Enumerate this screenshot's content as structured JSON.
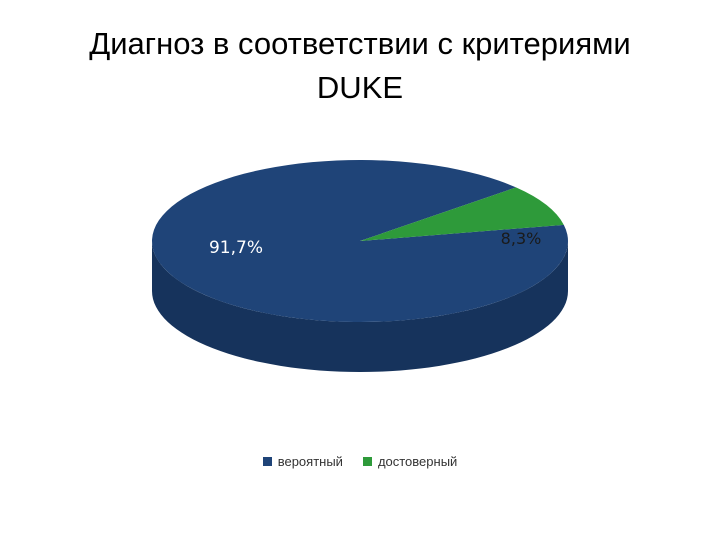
{
  "title": {
    "line1": "Диагноз в соответствии с критериями",
    "line2": "DUKE"
  },
  "colors": {
    "series_blue": "#1F4478",
    "series_blue_side": "#16335C",
    "series_green": "#2E9A3A",
    "series_green_side": "#237A2D"
  },
  "chart_data": {
    "type": "pie",
    "categories": [
      "вероятный",
      "достоверный"
    ],
    "values": [
      91.7,
      8.3
    ],
    "data_labels": [
      "91,7%",
      "8,3%"
    ],
    "legend_position": "bottom",
    "three_d": true
  }
}
